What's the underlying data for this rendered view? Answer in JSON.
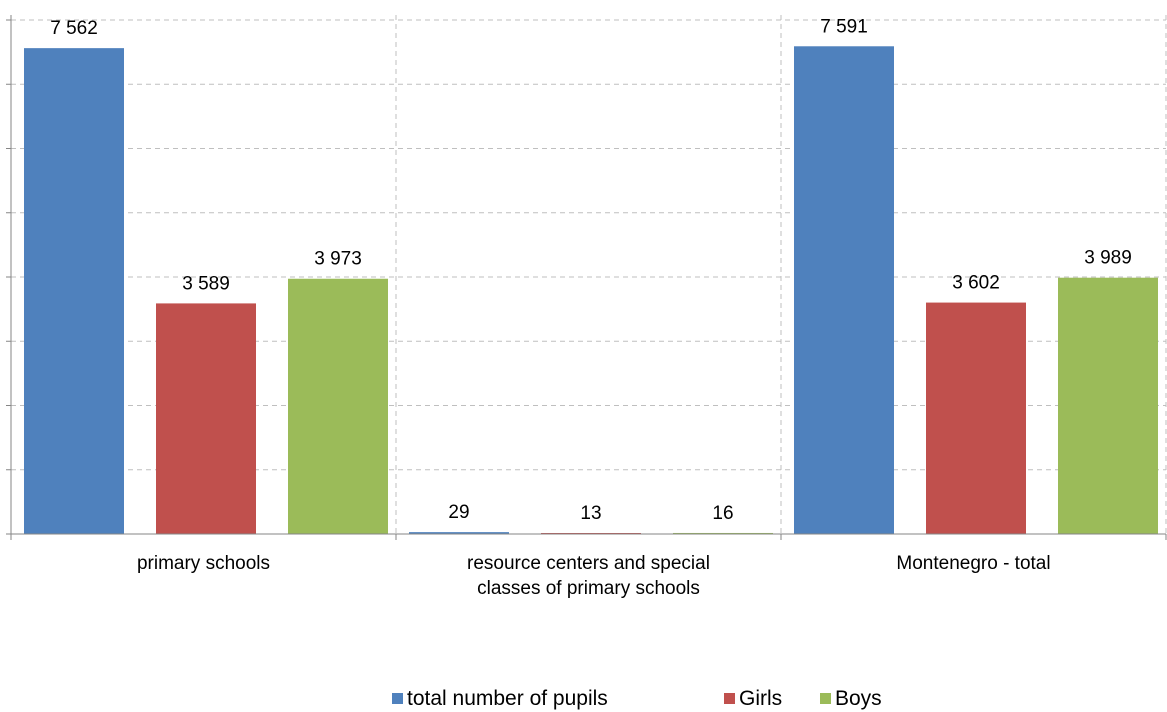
{
  "chart_data": {
    "type": "bar",
    "categories": [
      [
        "primary schools"
      ],
      [
        "resource centers and special",
        "classes of primary schools"
      ],
      [
        "Montenegro - total"
      ]
    ],
    "series": [
      {
        "name": "total number of pupils",
        "color": "#4F81BD",
        "values": [
          7562,
          29,
          7591
        ],
        "labels": [
          "7 562",
          "29",
          "7 591"
        ]
      },
      {
        "name": "Girls",
        "color": "#C0504D",
        "values": [
          3589,
          13,
          3602
        ],
        "labels": [
          "3 589",
          "13",
          "3 602"
        ]
      },
      {
        "name": "Boys",
        "color": "#9BBB59",
        "values": [
          3973,
          16,
          3989
        ],
        "labels": [
          "3 973",
          "16",
          "3 989"
        ]
      }
    ],
    "ylim": [
      0,
      8000
    ],
    "grid": true,
    "legend_position": "bottom"
  }
}
